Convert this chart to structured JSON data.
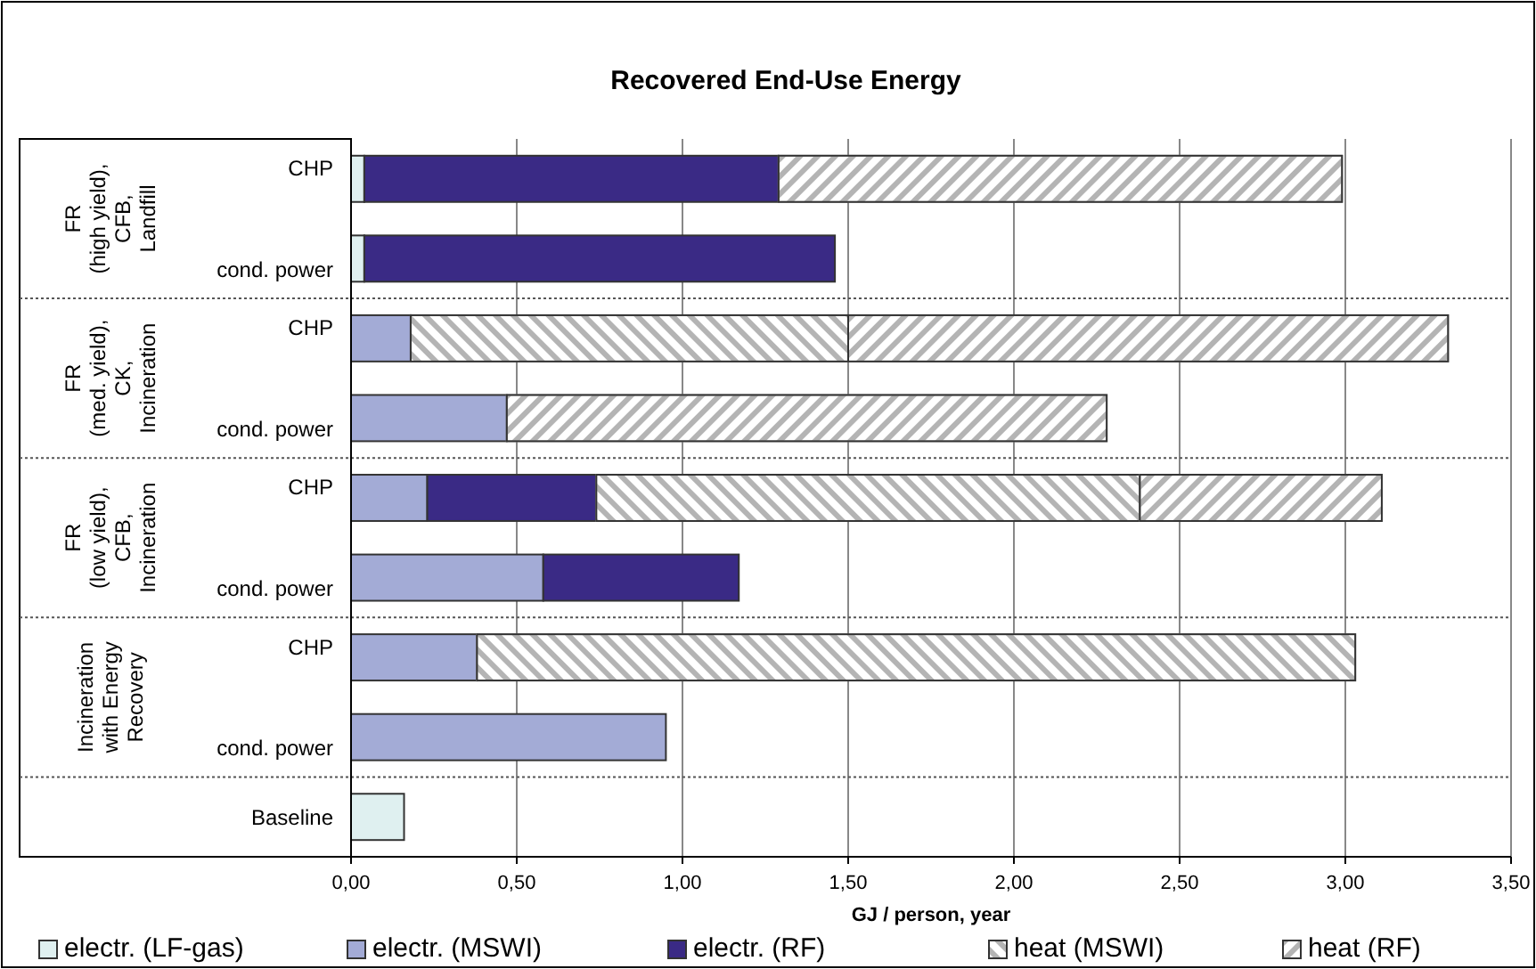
{
  "chart_data": {
    "type": "bar",
    "orientation": "horizontal",
    "stacked": true,
    "title": "Recovered End-Use Energy",
    "xlabel": "GJ / person, year",
    "categories": [
      "CHP",
      "cond. power",
      "CHP",
      "cond. power",
      "CHP",
      "cond. power",
      "CHP",
      "cond. power",
      "Baseline"
    ],
    "annotations": [
      "FR\n(high yield),\nCFB,\nLandfill",
      "FR\n(med. yield),\nCK,\nIncineration",
      "FR\n(low yield),\nCFB,\nIncineration",
      "Incineration\nwith Energy\nRecovery"
    ],
    "series": [
      {
        "name": "electr. (LF-gas)",
        "color": "#dff0f0",
        "values": [
          0.04,
          0.04,
          null,
          null,
          null,
          null,
          null,
          null,
          0.16
        ]
      },
      {
        "name": "electr. (MSWI)",
        "color": "#a3abd6",
        "values": [
          null,
          null,
          0.18,
          0.47,
          0.23,
          0.58,
          0.38,
          0.95,
          null
        ]
      },
      {
        "name": "electr. (RF)",
        "color": "#3a2a85",
        "values": [
          1.25,
          1.42,
          null,
          null,
          0.51,
          0.59,
          null,
          null,
          null
        ]
      },
      {
        "name": "heat (MSWI)",
        "color": "#b4b4b4",
        "values": [
          null,
          null,
          1.32,
          null,
          1.64,
          null,
          2.65,
          null,
          null
        ]
      },
      {
        "name": "heat (RF)",
        "color": "#b4b4b4",
        "values": [
          1.7,
          null,
          1.81,
          1.81,
          0.73,
          null,
          null,
          null,
          null
        ]
      }
    ],
    "xlim": [
      0,
      3.5
    ],
    "xticks": [
      {
        "value": 0,
        "label": "0,00"
      },
      {
        "value": 0.5,
        "label": "0,50"
      },
      {
        "value": 1,
        "label": "1,00"
      },
      {
        "value": 1.5,
        "label": "1,50"
      },
      {
        "value": 2,
        "label": "2,00"
      },
      {
        "value": 2.5,
        "label": "2,50"
      },
      {
        "value": 3,
        "label": "3,00"
      },
      {
        "value": 3.5,
        "label": "3,50"
      }
    ],
    "grid": "x",
    "legend": "bottom"
  }
}
